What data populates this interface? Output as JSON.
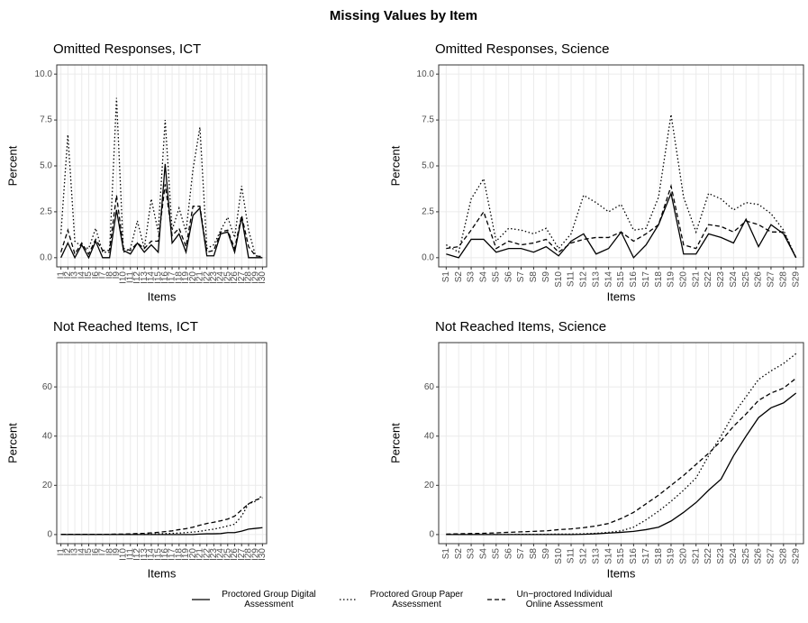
{
  "title": "Missing Values by Item",
  "chart_data": [
    {
      "type": "line",
      "title": "Omitted Responses, ICT",
      "xlabel": "Items",
      "ylabel": "Percent",
      "categories": [
        "I1",
        "I2",
        "I3",
        "I4",
        "I5",
        "I6",
        "I7",
        "I8",
        "I9",
        "I10",
        "I11",
        "I12",
        "I13",
        "I14",
        "I15",
        "I16",
        "I17",
        "I18",
        "I19",
        "I20",
        "I21",
        "I22",
        "I23",
        "I24",
        "I25",
        "I26",
        "I27",
        "I28",
        "I29",
        "I30"
      ],
      "ylim": [
        -0.5,
        10.5
      ],
      "yticks": [
        {
          "value": 0,
          "label": "0.0"
        },
        2.5,
        {
          "value": 5,
          "label": "5.0"
        },
        7.5,
        {
          "value": 10,
          "label": "10.0"
        }
      ],
      "grid": true,
      "series": [
        {
          "name": "Proctored Group Digital Assessment",
          "color": "#000000",
          "dash": "solid",
          "values": [
            0,
            0.8,
            0,
            0.7,
            0,
            0.9,
            0,
            0,
            2.6,
            0.4,
            0.2,
            0.8,
            0.3,
            0.7,
            0.3,
            5.1,
            0.8,
            1.3,
            0.3,
            2.3,
            2.7,
            0.1,
            0.1,
            1.3,
            1.4,
            0.3,
            2.2,
            0,
            0,
            0
          ]
        },
        {
          "name": "Proctored Group Paper Assessment",
          "color": "#000000",
          "dash": "dotted",
          "values": [
            1.3,
            6.7,
            0.9,
            0.6,
            0.5,
            1.6,
            0.3,
            0.3,
            8.7,
            0.3,
            0.5,
            2.0,
            0.5,
            3.2,
            1.4,
            7.5,
            1.5,
            2.7,
            1.4,
            4.8,
            7.1,
            0.5,
            0.7,
            1.5,
            2.2,
            1.1,
            3.9,
            1.5,
            0.1,
            0.05
          ]
        },
        {
          "name": "Un−proctored Individual Online Assessment",
          "color": "#000000",
          "dash": "dashed",
          "values": [
            0.3,
            1.5,
            0.2,
            0.8,
            0.2,
            1.0,
            0.4,
            0.4,
            3.4,
            0.5,
            0.4,
            0.8,
            0.5,
            0.9,
            0.9,
            4.0,
            1.2,
            1.6,
            0.6,
            2.8,
            2.8,
            0.3,
            0.4,
            1.4,
            1.5,
            0.5,
            2.3,
            0.6,
            0.1,
            0.05
          ]
        }
      ]
    },
    {
      "type": "line",
      "title": "Omitted Responses, Science",
      "xlabel": "Items",
      "ylabel": "Percent",
      "categories": [
        "S1",
        "S2",
        "S3",
        "S4",
        "S5",
        "S6",
        "S7",
        "S8",
        "S9",
        "S10",
        "S11",
        "S12",
        "S13",
        "S14",
        "S15",
        "S16",
        "S17",
        "S18",
        "S19",
        "S20",
        "S21",
        "S22",
        "S23",
        "S24",
        "S25",
        "S26",
        "S27",
        "S28",
        "S29"
      ],
      "ylim": [
        -0.5,
        10.5
      ],
      "yticks": [
        {
          "value": 0,
          "label": "0.0"
        },
        2.5,
        {
          "value": 5,
          "label": "5.0"
        },
        7.5,
        {
          "value": 10,
          "label": "10.0"
        }
      ],
      "grid": true,
      "series": [
        {
          "name": "Proctored Group Digital Assessment",
          "color": "#000000",
          "dash": "solid",
          "values": [
            0.2,
            0,
            1.0,
            1.0,
            0.3,
            0.5,
            0.5,
            0.3,
            0.6,
            0.1,
            0.9,
            1.3,
            0.2,
            0.5,
            1.4,
            0,
            0.7,
            1.8,
            3.5,
            0.2,
            0.2,
            1.3,
            1.1,
            0.8,
            2.1,
            0.6,
            1.8,
            1.3,
            0
          ]
        },
        {
          "name": "Proctored Group Paper Assessment",
          "color": "#000000",
          "dash": "dotted",
          "values": [
            0.7,
            0.3,
            3.2,
            4.3,
            0.9,
            1.6,
            1.5,
            1.3,
            1.6,
            0.5,
            1.3,
            3.4,
            3.0,
            2.5,
            2.9,
            1.5,
            1.6,
            3.3,
            7.8,
            3.3,
            1.4,
            3.5,
            3.2,
            2.6,
            3.0,
            2.9,
            2.4,
            1.5,
            0
          ]
        },
        {
          "name": "Un−proctored Individual Online Assessment",
          "color": "#000000",
          "dash": "dashed",
          "values": [
            0.5,
            0.6,
            1.5,
            2.5,
            0.5,
            0.9,
            0.7,
            0.8,
            1.0,
            0.3,
            0.8,
            1.0,
            1.1,
            1.1,
            1.4,
            0.9,
            1.3,
            1.8,
            3.9,
            0.7,
            0.5,
            1.8,
            1.7,
            1.4,
            2.0,
            1.8,
            1.4,
            1.4,
            0
          ]
        }
      ]
    },
    {
      "type": "line",
      "title": "Not Reached Items, ICT",
      "xlabel": "Items",
      "ylabel": "Percent",
      "categories": [
        "I1",
        "I2",
        "I3",
        "I4",
        "I5",
        "I6",
        "I7",
        "I8",
        "I9",
        "I10",
        "I11",
        "I12",
        "I13",
        "I14",
        "I15",
        "I16",
        "I17",
        "I18",
        "I19",
        "I20",
        "I21",
        "I22",
        "I23",
        "I24",
        "I25",
        "I26",
        "I27",
        "I28",
        "I29",
        "I30"
      ],
      "ylim": [
        -3.7,
        78
      ],
      "yticks": [
        0,
        20,
        40,
        60
      ],
      "grid": true,
      "series": [
        {
          "name": "Proctored Group Digital Assessment",
          "color": "#000000",
          "dash": "solid",
          "values": [
            0,
            0,
            0,
            0,
            0,
            0,
            0,
            0,
            0,
            0,
            0,
            0,
            0,
            0,
            0,
            0,
            0,
            0,
            0,
            0,
            0.2,
            0.3,
            0.3,
            0.4,
            0.8,
            0.8,
            1.4,
            2.2,
            2.5,
            2.8
          ]
        },
        {
          "name": "Proctored Group Paper Assessment",
          "color": "#000000",
          "dash": "dotted",
          "values": [
            0.1,
            0.1,
            0.1,
            0.1,
            0.1,
            0.1,
            0.1,
            0.1,
            0.1,
            0.1,
            0.1,
            0.1,
            0.1,
            0.2,
            0.3,
            0.4,
            0.5,
            0.6,
            0.8,
            1.0,
            1.3,
            1.8,
            2.2,
            2.8,
            3.5,
            4.2,
            7.5,
            12.5,
            13.5,
            16
          ]
        },
        {
          "name": "Un−proctored Individual Online Assessment",
          "color": "#000000",
          "dash": "dashed",
          "values": [
            0.1,
            0.1,
            0.1,
            0.1,
            0.1,
            0.1,
            0.1,
            0.1,
            0.2,
            0.2,
            0.3,
            0.4,
            0.5,
            0.7,
            0.9,
            1.2,
            1.5,
            2.0,
            2.4,
            3.0,
            3.8,
            4.5,
            5.0,
            5.6,
            6.3,
            7.5,
            10,
            12.5,
            14,
            15
          ]
        }
      ]
    },
    {
      "type": "line",
      "title": "Not Reached Items, Science",
      "xlabel": "Items",
      "ylabel": "Percent",
      "categories": [
        "S1",
        "S2",
        "S3",
        "S4",
        "S5",
        "S6",
        "S7",
        "S8",
        "S9",
        "S10",
        "S11",
        "S12",
        "S13",
        "S14",
        "S15",
        "S16",
        "S17",
        "S18",
        "S19",
        "S20",
        "S21",
        "S22",
        "S23",
        "S24",
        "S25",
        "S26",
        "S27",
        "S28",
        "S29"
      ],
      "ylim": [
        -3.7,
        78
      ],
      "yticks": [
        0,
        20,
        40,
        60
      ],
      "grid": true,
      "series": [
        {
          "name": "Proctored Group Digital Assessment",
          "color": "#000000",
          "dash": "solid",
          "values": [
            0,
            0,
            0,
            0,
            0,
            0,
            0,
            0,
            0,
            0,
            0,
            0.1,
            0.3,
            0.6,
            0.9,
            1.3,
            2.0,
            3.0,
            5.5,
            9,
            13,
            18,
            22.5,
            32,
            40,
            47.5,
            51.5,
            53.5,
            57.5
          ]
        },
        {
          "name": "Proctored Group Paper Assessment",
          "color": "#000000",
          "dash": "dotted",
          "values": [
            0,
            0,
            0,
            0,
            0,
            0,
            0.1,
            0.1,
            0.1,
            0.2,
            0.2,
            0.3,
            0.5,
            0.9,
            1.5,
            3,
            6,
            9.5,
            13.5,
            18,
            23,
            32,
            40,
            49,
            56,
            63,
            66.5,
            69.5,
            73.5
          ]
        },
        {
          "name": "Un−proctored Individual Online Assessment",
          "color": "#000000",
          "dash": "dashed",
          "values": [
            0.2,
            0.3,
            0.4,
            0.5,
            0.7,
            0.9,
            1.1,
            1.3,
            1.5,
            2.0,
            2.3,
            2.8,
            3.5,
            4.5,
            6.5,
            9,
            12.5,
            16,
            20,
            24,
            28.5,
            33,
            38,
            44,
            49,
            54.5,
            57.5,
            59.5,
            63.5
          ]
        }
      ]
    }
  ]
}
